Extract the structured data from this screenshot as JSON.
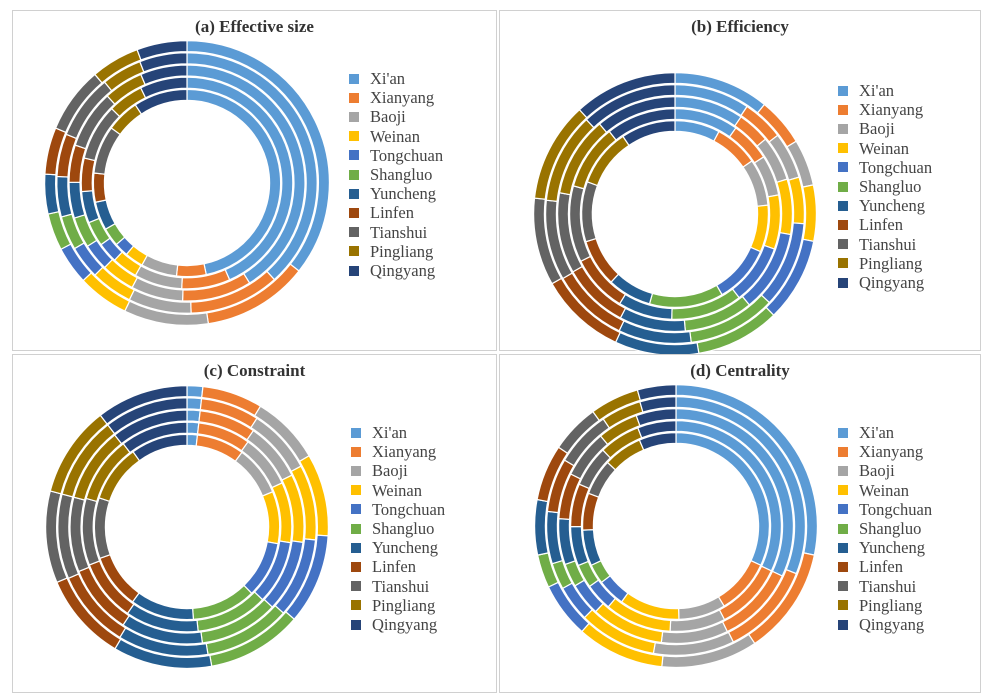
{
  "colors": [
    "#5b9bd5",
    "#ed7d31",
    "#a5a5a5",
    "#ffc000",
    "#4472c4",
    "#70ad47",
    "#255e91",
    "#9e480e",
    "#636363",
    "#997300",
    "#264478"
  ],
  "legend": [
    "Xi'an",
    "Xianyang",
    "Baoji",
    "Weinan",
    "Tongchuan",
    "Shangluo",
    "Yuncheng",
    "Linfen",
    "Tianshui",
    "Pingliang",
    "Qingyang"
  ],
  "chart_data": [
    {
      "type": "donut",
      "title": "(a) Effective size",
      "categories": [
        "Xi'an",
        "Xianyang",
        "Baoji",
        "Weinan",
        "Tongchuan",
        "Shangluo",
        "Yuncheng",
        "Linfen",
        "Tianshui",
        "Pingliang",
        "Qingyang"
      ],
      "series": [
        {
          "values": [
            46.7,
            5.1,
            6.2,
            3.2,
            2.4,
            3.2,
            4.9,
            5.0,
            8.3,
            5.7,
            9.3
          ]
        },
        {
          "values": [
            43.4,
            7.4,
            7.3,
            3.9,
            3.1,
            3.8,
            4.8,
            5.1,
            8.6,
            5.4,
            7.2
          ]
        },
        {
          "values": [
            41.1,
            9.5,
            7.1,
            4.6,
            3.7,
            4.2,
            4.9,
            5.1,
            8.0,
            5.4,
            6.4
          ]
        },
        {
          "values": [
            38.3,
            11.2,
            7.8,
            5.2,
            4.1,
            4.2,
            5.0,
            5.3,
            8.0,
            5.0,
            5.9
          ]
        },
        {
          "values": [
            35.6,
            12.0,
            9.6,
            5.8,
            4.3,
            4.2,
            4.5,
            5.3,
            7.5,
            5.5,
            5.7
          ]
        }
      ]
    },
    {
      "type": "donut",
      "title": "(b) Efficiency",
      "categories": [
        "Xi'an",
        "Xianyang",
        "Baoji",
        "Weinan",
        "Tongchuan",
        "Shangluo",
        "Yuncheng",
        "Linfen",
        "Tianshui",
        "Pingliang",
        "Qingyang"
      ],
      "series": [
        {
          "values": [
            7.8,
            7.6,
            8.1,
            8.1,
            10.0,
            12.8,
            7.6,
            8.2,
            10.4,
            10.0,
            9.4
          ]
        },
        {
          "values": [
            9.8,
            6.1,
            6.2,
            8.3,
            9.2,
            10.9,
            8.3,
            8.8,
            11.7,
            10.0,
            10.7
          ]
        },
        {
          "values": [
            9.5,
            4.5,
            6.2,
            7.6,
            11.3,
            9.5,
            9.1,
            9.1,
            11.1,
            11.0,
            11.1
          ]
        },
        {
          "values": [
            9.4,
            5.2,
            5.8,
            5.8,
            10.8,
            11.0,
            9.1,
            9.6,
            10.0,
            11.3,
            12.0
          ]
        },
        {
          "values": [
            10.9,
            5.5,
            5.3,
            6.4,
            9.6,
            9.6,
            9.6,
            9.9,
            10.0,
            11.4,
            11.8
          ]
        }
      ]
    },
    {
      "type": "donut",
      "title": "(c) Constraint",
      "categories": [
        "Xi'an",
        "Xianyang",
        "Baoji",
        "Weinan",
        "Tongchuan",
        "Shangluo",
        "Yuncheng",
        "Linfen",
        "Tianshui",
        "Pingliang",
        "Qingyang"
      ],
      "series": [
        {
          "values": [
            1.8,
            8.3,
            8.7,
            9.1,
            9.8,
            11.2,
            11.1,
            9.5,
            10.6,
            10.0,
            9.9
          ]
        },
        {
          "values": [
            1.8,
            8.1,
            8.2,
            9.3,
            9.8,
            11.1,
            11.3,
            9.5,
            10.3,
            10.2,
            10.4
          ]
        },
        {
          "values": [
            1.8,
            7.8,
            8.1,
            9.4,
            9.9,
            10.9,
            11.3,
            9.6,
            10.3,
            10.3,
            10.6
          ]
        },
        {
          "values": [
            1.8,
            7.3,
            8.1,
            9.4,
            10.0,
            10.8,
            11.3,
            9.8,
            10.6,
            10.4,
            10.5
          ]
        },
        {
          "values": [
            1.8,
            6.9,
            7.9,
            9.4,
            10.3,
            10.9,
            11.3,
            10.1,
            10.5,
            10.4,
            10.5
          ]
        }
      ]
    },
    {
      "type": "donut",
      "title": "(d) Centrality",
      "categories": [
        "Xi'an",
        "Xianyang",
        "Baoji",
        "Weinan",
        "Tongchuan",
        "Shangluo",
        "Yuncheng",
        "Linfen",
        "Tianshui",
        "Pingliang",
        "Qingyang"
      ],
      "series": [
        {
          "values": [
            31.9,
            9.5,
            8.1,
            10.4,
            4.8,
            3.4,
            6.2,
            6.4,
            6.2,
            6.7,
            6.4
          ]
        },
        {
          "values": [
            32.0,
            10.4,
            8.5,
            10.2,
            4.2,
            3.6,
            6.0,
            6.6,
            6.3,
            6.3,
            5.9
          ]
        },
        {
          "values": [
            32.0,
            10.8,
            9.2,
            10.0,
            4.5,
            3.2,
            6.3,
            6.3,
            6.6,
            5.6,
            5.5
          ]
        },
        {
          "values": [
            31.0,
            11.7,
            10.1,
            9.7,
            4.5,
            3.3,
            6.5,
            6.7,
            7.0,
            5.0,
            4.5
          ]
        },
        {
          "values": [
            28.3,
            12.3,
            11.0,
            10.0,
            6.3,
            3.8,
            6.3,
            6.4,
            5.6,
            5.6,
            4.4
          ]
        }
      ]
    }
  ]
}
